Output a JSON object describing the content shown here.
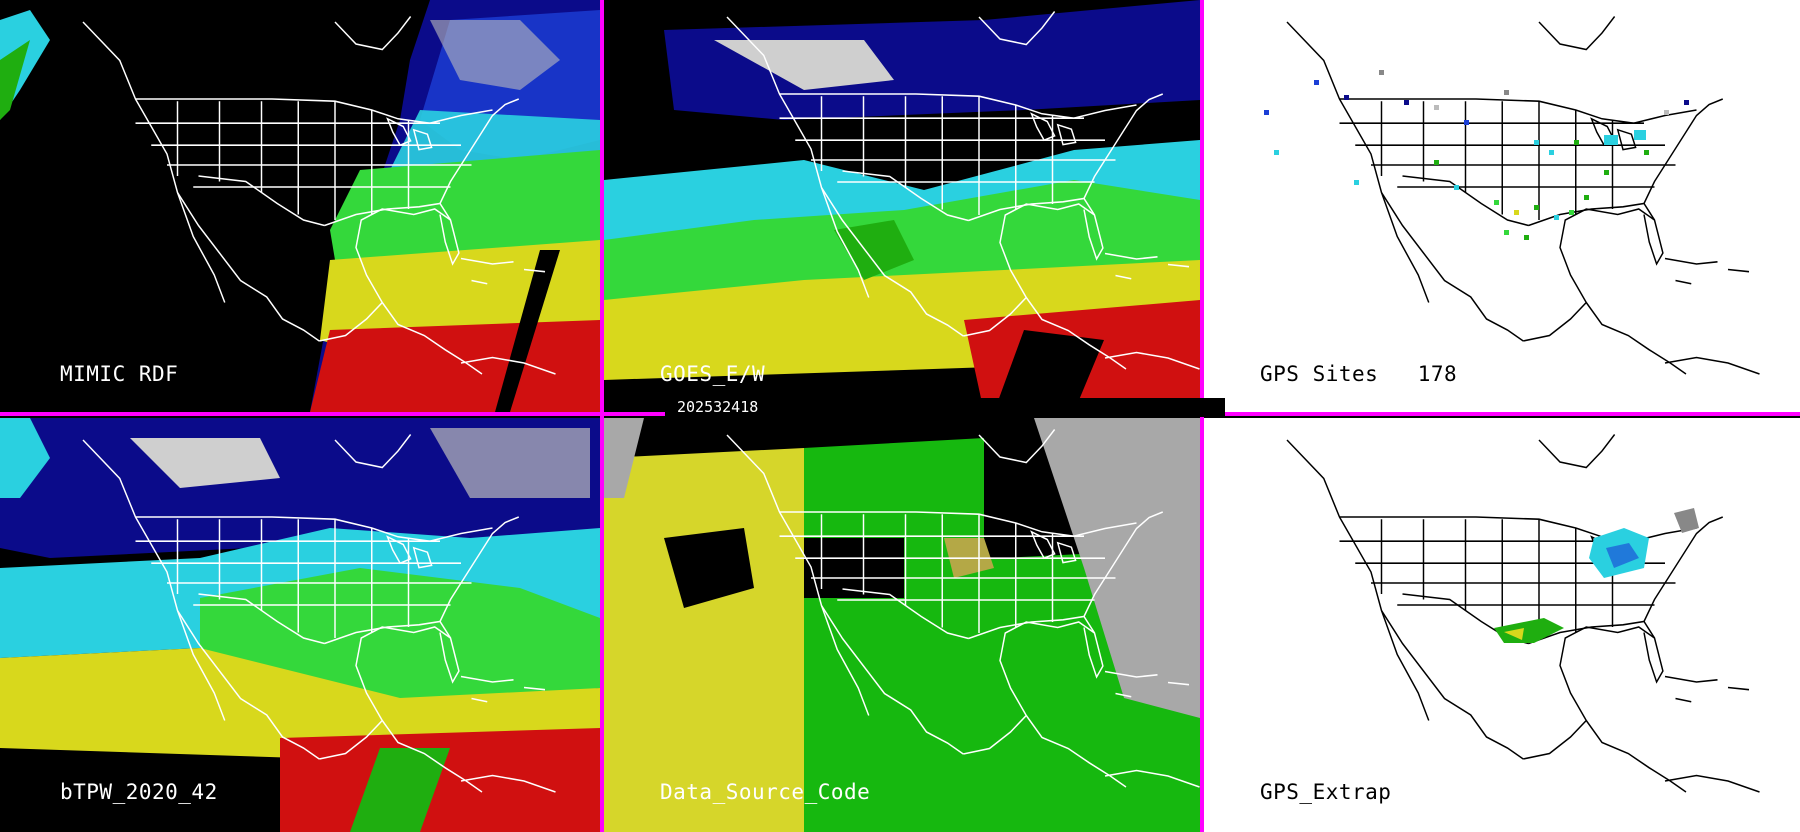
{
  "panels": [
    {
      "id": "mimic-rdf",
      "label": "MIMIC RDF",
      "theme": "dark"
    },
    {
      "id": "goes-ew",
      "label": "GOES_E/W",
      "theme": "dark"
    },
    {
      "id": "gps-sites",
      "label": "GPS Sites",
      "count": "178",
      "theme": "light"
    },
    {
      "id": "btpw",
      "label": "bTPW_2020_42",
      "theme": "dark"
    },
    {
      "id": "data-source",
      "label": "Data_Source_Code",
      "theme": "dark"
    },
    {
      "id": "gps-extrap",
      "label": "GPS_Extrap",
      "theme": "light"
    }
  ],
  "timestamp": "202532418",
  "colors": {
    "divider": "#ff00ff",
    "tpw_scale": [
      "#0b0b8a",
      "#1b3fd6",
      "#2ad0e0",
      "#34d83b",
      "#1fae10",
      "#d8d81c",
      "#c9c40f",
      "#d01010"
    ],
    "source_codes": [
      "#d6d62a",
      "#16b80f",
      "#a8a8a8",
      "#000000"
    ]
  }
}
